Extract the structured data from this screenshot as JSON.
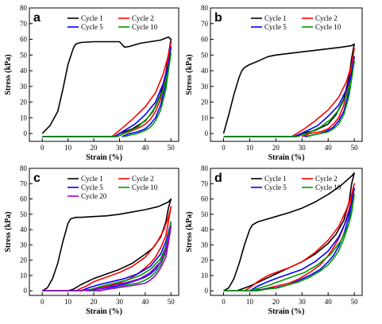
{
  "colors": {
    "cycle1": "#000000",
    "cycle2": "#ff0000",
    "cycle5": "#0000ff",
    "cycle10": "#009900",
    "cycle20": "#9900cc"
  },
  "chart_data": [
    {
      "type": "line",
      "panel": "a",
      "xlabel": "Strain (%)",
      "ylabel": "Stress (kPa)",
      "xlim": [
        -5,
        53
      ],
      "ylim": [
        -5,
        80
      ],
      "xticks": [
        0,
        10,
        20,
        30,
        40,
        50
      ],
      "yticks": [
        0,
        10,
        20,
        30,
        40,
        50,
        60,
        70,
        80
      ],
      "legend": "top-right",
      "series": [
        {
          "name": "Cycle 1",
          "color": "#000000",
          "x": [
            0,
            3,
            6,
            8,
            10,
            12,
            13,
            15,
            20,
            25,
            30,
            32,
            34,
            38,
            42,
            46,
            49,
            50,
            49,
            48,
            46,
            43,
            40,
            35,
            30,
            28,
            20,
            10,
            0
          ],
          "y": [
            0,
            5,
            14,
            28,
            44,
            54,
            57,
            58,
            58.5,
            58.5,
            58.5,
            55,
            55.5,
            57.5,
            58.5,
            59.5,
            61.5,
            60,
            50,
            38,
            25,
            14,
            8,
            3,
            0,
            -2,
            -2,
            -2,
            -2
          ]
        },
        {
          "name": "Cycle 2",
          "color": "#ff0000",
          "x": [
            0,
            10,
            20,
            27,
            30,
            35,
            40,
            44,
            47,
            49,
            50,
            49,
            48,
            46,
            44,
            42,
            40,
            38,
            35,
            32,
            29
          ],
          "y": [
            -2,
            -2,
            -2,
            -2,
            2,
            9,
            17,
            26,
            38,
            50,
            58,
            48,
            36,
            22,
            14,
            9,
            6,
            4,
            2,
            0,
            -2
          ]
        },
        {
          "name": "Cycle 5",
          "color": "#0000ff",
          "x": [
            0,
            10,
            20,
            28,
            32,
            36,
            40,
            44,
            47,
            49,
            50,
            49,
            48,
            46,
            44,
            42,
            40,
            37,
            34,
            31
          ],
          "y": [
            -2,
            -2,
            -2,
            -2,
            2,
            6,
            12,
            20,
            32,
            44,
            55,
            44,
            32,
            18,
            10,
            6,
            3,
            1,
            0,
            -2
          ]
        },
        {
          "name": "Cycle 10",
          "color": "#009900",
          "x": [
            0,
            10,
            20,
            29,
            33,
            37,
            41,
            44,
            47,
            49,
            50,
            49,
            48,
            46,
            44,
            42,
            40,
            37,
            34,
            32
          ],
          "y": [
            -2,
            -2,
            -2,
            -2,
            1,
            4,
            10,
            17,
            28,
            40,
            51,
            40,
            28,
            15,
            8,
            4,
            2,
            0,
            -1,
            -2
          ]
        }
      ]
    },
    {
      "type": "line",
      "panel": "b",
      "xlabel": "Strain (%)",
      "ylabel": "Stress (kPa)",
      "xlim": [
        -5,
        53
      ],
      "ylim": [
        -5,
        80
      ],
      "xticks": [
        0,
        10,
        20,
        30,
        40,
        50
      ],
      "yticks": [
        0,
        10,
        20,
        30,
        40,
        50,
        60,
        70,
        80
      ],
      "legend": "top-right",
      "series": [
        {
          "name": "Cycle 1",
          "color": "#000000",
          "x": [
            0,
            2,
            4,
            6,
            7,
            8,
            10,
            13,
            17,
            20,
            25,
            30,
            35,
            40,
            45,
            49,
            50,
            49,
            48,
            46,
            43,
            40,
            35,
            30,
            27,
            20,
            10,
            0
          ],
          "y": [
            0,
            12,
            25,
            36,
            40,
            42,
            44,
            46,
            49,
            50,
            51,
            52,
            53,
            54,
            55,
            56,
            57,
            48,
            36,
            22,
            12,
            6,
            2,
            0,
            -2,
            -2,
            -2,
            -2
          ]
        },
        {
          "name": "Cycle 2",
          "color": "#ff0000",
          "x": [
            0,
            10,
            20,
            26,
            30,
            35,
            40,
            44,
            47,
            49,
            50,
            49,
            48,
            46,
            44,
            42,
            40,
            37,
            33,
            30
          ],
          "y": [
            -2,
            -2,
            -2,
            -2,
            2,
            8,
            15,
            23,
            33,
            44,
            54,
            44,
            32,
            18,
            10,
            6,
            3,
            1,
            0,
            -2
          ]
        },
        {
          "name": "Cycle 5",
          "color": "#0000ff",
          "x": [
            0,
            10,
            20,
            27,
            31,
            36,
            40,
            44,
            47,
            49,
            50,
            49,
            48,
            46,
            44,
            42,
            40,
            37,
            34,
            31
          ],
          "y": [
            -2,
            -2,
            -2,
            -2,
            1,
            5,
            11,
            18,
            28,
            39,
            49,
            38,
            27,
            14,
            8,
            4,
            2,
            0,
            -1,
            -2
          ]
        },
        {
          "name": "Cycle 10",
          "color": "#009900",
          "x": [
            0,
            10,
            20,
            28,
            32,
            37,
            41,
            44,
            47,
            49,
            50,
            49,
            48,
            46,
            44,
            42,
            40,
            37,
            34,
            32
          ],
          "y": [
            -2,
            -2,
            -2,
            -2,
            0,
            4,
            9,
            15,
            24,
            35,
            46,
            35,
            24,
            12,
            6,
            3,
            1,
            0,
            -1,
            -2
          ]
        }
      ]
    },
    {
      "type": "line",
      "panel": "c",
      "xlabel": "Strain (%)",
      "ylabel": "Stress (kPa)",
      "xlim": [
        -5,
        53
      ],
      "ylim": [
        -3,
        80
      ],
      "xticks": [
        0,
        10,
        20,
        30,
        40,
        50
      ],
      "yticks": [
        0,
        10,
        20,
        30,
        40,
        50,
        60,
        70,
        80
      ],
      "legend": "top-right",
      "series": [
        {
          "name": "Cycle 1",
          "color": "#000000",
          "x": [
            0,
            2,
            4,
            6,
            8,
            10,
            11,
            13,
            15,
            20,
            25,
            30,
            35,
            40,
            45,
            49,
            50,
            49,
            48,
            46,
            43,
            40,
            35,
            30,
            25,
            20,
            15,
            12,
            10,
            5,
            0
          ],
          "y": [
            0,
            2,
            8,
            18,
            32,
            44,
            47,
            48,
            48,
            48.5,
            49,
            50,
            51.5,
            53,
            55,
            58,
            60,
            54,
            45,
            35,
            28,
            24,
            18,
            14,
            11,
            8,
            4,
            1,
            0,
            0,
            0
          ]
        },
        {
          "name": "Cycle 2",
          "color": "#ff0000",
          "x": [
            0,
            5,
            10,
            13,
            17,
            20,
            25,
            30,
            35,
            40,
            44,
            47,
            49,
            50,
            49,
            48,
            46,
            44,
            42,
            40,
            37,
            34,
            30,
            25,
            20,
            17
          ],
          "y": [
            0,
            0,
            0,
            0,
            3,
            6,
            9,
            12,
            16,
            22,
            30,
            39,
            48,
            55,
            45,
            36,
            28,
            22,
            18,
            15,
            11,
            8,
            5,
            3,
            1,
            0
          ]
        },
        {
          "name": "Cycle 5",
          "color": "#0000ff",
          "x": [
            0,
            5,
            10,
            15,
            18,
            22,
            27,
            32,
            37,
            42,
            46,
            48,
            50,
            49,
            48,
            46,
            44,
            42,
            40,
            37,
            33,
            29,
            25,
            21,
            18
          ],
          "y": [
            0,
            0,
            0,
            0,
            2,
            4,
            6,
            8,
            11,
            16,
            24,
            32,
            45,
            36,
            27,
            19,
            14,
            11,
            9,
            7,
            5,
            3,
            2,
            1,
            0
          ]
        },
        {
          "name": "Cycle 10",
          "color": "#009900",
          "x": [
            0,
            5,
            10,
            15,
            19,
            23,
            28,
            33,
            38,
            42,
            46,
            48,
            50,
            49,
            48,
            46,
            44,
            42,
            40,
            37,
            33,
            29,
            25,
            22,
            19
          ],
          "y": [
            0,
            0,
            0,
            0,
            1,
            3,
            5,
            7,
            10,
            14,
            21,
            29,
            45,
            34,
            25,
            17,
            12,
            9,
            7,
            5,
            4,
            2,
            1,
            0,
            0
          ]
        },
        {
          "name": "Cycle 20",
          "color": "#9900cc",
          "x": [
            0,
            5,
            10,
            15,
            20,
            24,
            29,
            34,
            38,
            42,
            46,
            48,
            50,
            49,
            48,
            46,
            44,
            42,
            40,
            37,
            33,
            29,
            25,
            22,
            20
          ],
          "y": [
            0,
            0,
            0,
            0,
            1,
            2,
            4,
            6,
            8,
            12,
            19,
            27,
            42,
            31,
            22,
            15,
            10,
            7,
            5,
            4,
            3,
            2,
            1,
            0,
            0
          ]
        }
      ]
    },
    {
      "type": "line",
      "panel": "d",
      "xlabel": "Strain (%)",
      "ylabel": "Stress (kPa)",
      "xlim": [
        -5,
        53
      ],
      "ylim": [
        -3,
        80
      ],
      "xticks": [
        0,
        10,
        20,
        30,
        40,
        50
      ],
      "yticks": [
        0,
        10,
        20,
        30,
        40,
        50,
        60,
        70,
        80
      ],
      "legend": "top-right",
      "series": [
        {
          "name": "Cycle 1",
          "color": "#000000",
          "x": [
            0,
            2,
            4,
            6,
            8,
            10,
            11,
            13,
            15,
            20,
            25,
            30,
            35,
            40,
            45,
            49,
            50,
            49,
            48,
            46,
            43,
            40,
            35,
            30,
            25,
            20,
            15,
            10,
            5,
            0
          ],
          "y": [
            0,
            2,
            8,
            18,
            30,
            40,
            43,
            45,
            46,
            48.5,
            51,
            54,
            58,
            63,
            69,
            75,
            77,
            70,
            58,
            46,
            37,
            31,
            24,
            19,
            15,
            11,
            7,
            3,
            0,
            0
          ]
        },
        {
          "name": "Cycle 2",
          "color": "#ff0000",
          "x": [
            0,
            5,
            8,
            10,
            13,
            17,
            20,
            25,
            30,
            35,
            40,
            44,
            47,
            49,
            50,
            49,
            48,
            46,
            44,
            42,
            40,
            37,
            33,
            29,
            25,
            20,
            15,
            10,
            7
          ],
          "y": [
            0,
            0,
            0,
            2,
            6,
            10,
            12,
            15,
            19,
            25,
            33,
            42,
            53,
            63,
            70,
            62,
            53,
            42,
            34,
            28,
            23,
            17,
            12,
            8,
            5,
            3,
            1,
            0,
            0
          ]
        },
        {
          "name": "Cycle 5",
          "color": "#0000ff",
          "x": [
            0,
            5,
            10,
            13,
            17,
            20,
            25,
            30,
            35,
            40,
            44,
            47,
            49,
            50,
            49,
            48,
            46,
            44,
            42,
            40,
            37,
            33,
            29,
            25,
            20,
            15,
            12,
            10
          ],
          "y": [
            0,
            0,
            0,
            3,
            6,
            8,
            11,
            14,
            19,
            26,
            35,
            46,
            57,
            67,
            58,
            48,
            37,
            29,
            23,
            19,
            14,
            10,
            7,
            4,
            2,
            1,
            0,
            0
          ]
        },
        {
          "name": "Cycle 10",
          "color": "#009900",
          "x": [
            0,
            5,
            10,
            14,
            18,
            21,
            26,
            31,
            36,
            41,
            45,
            48,
            49,
            50,
            49,
            48,
            46,
            44,
            42,
            40,
            37,
            33,
            29,
            25,
            21,
            16,
            13,
            11
          ],
          "y": [
            0,
            0,
            0,
            2,
            4,
            6,
            9,
            12,
            17,
            24,
            33,
            44,
            51,
            63,
            53,
            44,
            34,
            26,
            21,
            17,
            13,
            9,
            6,
            4,
            2,
            1,
            0,
            0
          ]
        }
      ]
    }
  ]
}
